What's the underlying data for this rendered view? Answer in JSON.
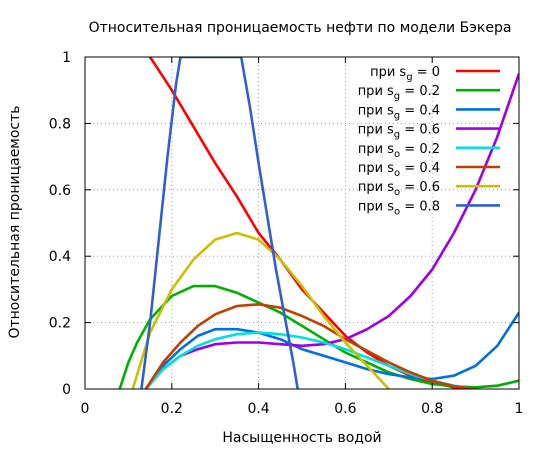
{
  "chart_data": {
    "type": "line",
    "title": "Относительная проницаемость нефти по модели Бэкера",
    "xlabel": "Насыщенность водой",
    "ylabel": "Относительная проницаемость",
    "xlim": [
      0,
      1
    ],
    "ylim": [
      0,
      1
    ],
    "x_ticks": [
      "0",
      "0.2",
      "0.4",
      "0.6",
      "0.8",
      "1"
    ],
    "y_ticks": [
      "0",
      "0.2",
      "0.4",
      "0.6",
      "0.8",
      "1"
    ],
    "grid": true,
    "legend_position": "top-right",
    "legend_prefix": "при",
    "series": [
      {
        "name": "при s_g = 0",
        "var": "s",
        "sub": "g",
        "val": "= 0",
        "color": "#ff0000",
        "x": [
          0.15,
          0.2,
          0.25,
          0.3,
          0.35,
          0.4,
          0.45,
          0.5,
          0.55,
          0.6,
          0.65,
          0.7,
          0.75,
          0.8,
          0.85,
          0.9
        ],
        "y": [
          1.0,
          0.9,
          0.79,
          0.68,
          0.58,
          0.47,
          0.39,
          0.3,
          0.23,
          0.16,
          0.11,
          0.07,
          0.04,
          0.02,
          0.005,
          0.0
        ]
      },
      {
        "name": "при s_g = 0.2",
        "var": "s",
        "sub": "g",
        "val": "= 0.2",
        "color": "#00b000",
        "x": [
          0.08,
          0.1,
          0.12,
          0.15,
          0.2,
          0.25,
          0.3,
          0.35,
          0.4,
          0.45,
          0.5,
          0.55,
          0.6,
          0.65,
          0.7,
          0.75,
          0.8,
          0.85,
          0.9,
          0.95,
          1.0
        ],
        "y": [
          0.0,
          0.08,
          0.14,
          0.21,
          0.28,
          0.31,
          0.31,
          0.29,
          0.26,
          0.23,
          0.19,
          0.15,
          0.11,
          0.08,
          0.05,
          0.03,
          0.015,
          0.008,
          0.005,
          0.01,
          0.025
        ]
      },
      {
        "name": "при s_g = 0.4",
        "var": "s",
        "sub": "g",
        "val": "= 0.4",
        "color": "#0070e0",
        "x": [
          0.14,
          0.18,
          0.22,
          0.26,
          0.3,
          0.35,
          0.4,
          0.45,
          0.5,
          0.55,
          0.6,
          0.65,
          0.7,
          0.75,
          0.8,
          0.85,
          0.9,
          0.95,
          1.0
        ],
        "y": [
          0.0,
          0.07,
          0.12,
          0.16,
          0.18,
          0.18,
          0.17,
          0.15,
          0.12,
          0.1,
          0.08,
          0.06,
          0.045,
          0.035,
          0.03,
          0.04,
          0.07,
          0.13,
          0.23
        ]
      },
      {
        "name": "при s_g = 0.6",
        "var": "s",
        "sub": "g",
        "val": "= 0.6",
        "color": "#a000e0",
        "x": [
          0.14,
          0.18,
          0.22,
          0.26,
          0.3,
          0.35,
          0.4,
          0.45,
          0.5,
          0.55,
          0.6,
          0.65,
          0.7,
          0.75,
          0.8,
          0.85,
          0.9,
          0.95,
          1.0
        ],
        "y": [
          0.0,
          0.06,
          0.1,
          0.12,
          0.135,
          0.14,
          0.14,
          0.135,
          0.13,
          0.135,
          0.15,
          0.18,
          0.22,
          0.28,
          0.36,
          0.47,
          0.6,
          0.76,
          0.95
        ]
      },
      {
        "name": "при s_o = 0.2",
        "var": "s",
        "sub": "o",
        "val": "= 0.2",
        "color": "#00e0e0",
        "x": [
          0.14,
          0.18,
          0.22,
          0.26,
          0.3,
          0.35,
          0.4,
          0.45,
          0.5,
          0.55,
          0.6,
          0.65,
          0.7,
          0.75,
          0.8,
          0.85,
          0.9
        ],
        "y": [
          0.0,
          0.06,
          0.1,
          0.13,
          0.15,
          0.165,
          0.17,
          0.165,
          0.155,
          0.14,
          0.12,
          0.095,
          0.07,
          0.045,
          0.025,
          0.01,
          0.0
        ]
      },
      {
        "name": "при s_o = 0.4",
        "var": "s",
        "sub": "o",
        "val": "= 0.4",
        "color": "#c04000",
        "x": [
          0.14,
          0.18,
          0.22,
          0.26,
          0.3,
          0.35,
          0.4,
          0.45,
          0.5,
          0.55,
          0.6,
          0.65,
          0.7,
          0.75,
          0.8,
          0.85,
          0.9
        ],
        "y": [
          0.0,
          0.08,
          0.14,
          0.19,
          0.225,
          0.25,
          0.255,
          0.245,
          0.22,
          0.19,
          0.15,
          0.115,
          0.08,
          0.05,
          0.025,
          0.008,
          0.0
        ]
      },
      {
        "name": "при s_o = 0.6",
        "var": "s",
        "sub": "o",
        "val": "= 0.6",
        "color": "#c8c000",
        "x": [
          0.11,
          0.15,
          0.2,
          0.25,
          0.3,
          0.35,
          0.4,
          0.45,
          0.5,
          0.55,
          0.6,
          0.65,
          0.7
        ],
        "y": [
          0.0,
          0.17,
          0.3,
          0.39,
          0.45,
          0.47,
          0.45,
          0.39,
          0.31,
          0.22,
          0.14,
          0.07,
          0.0
        ]
      },
      {
        "name": "при s_o = 0.8",
        "var": "s",
        "sub": "o",
        "val": "= 0.8",
        "color": "#3060d0",
        "x": [
          0.13,
          0.15,
          0.17,
          0.19,
          0.21,
          0.22,
          0.36,
          0.38,
          0.4,
          0.42,
          0.44,
          0.46,
          0.48,
          0.49
        ],
        "y": [
          0.0,
          0.2,
          0.45,
          0.7,
          0.92,
          1.0,
          1.0,
          0.85,
          0.68,
          0.52,
          0.36,
          0.22,
          0.08,
          0.0
        ]
      }
    ]
  }
}
